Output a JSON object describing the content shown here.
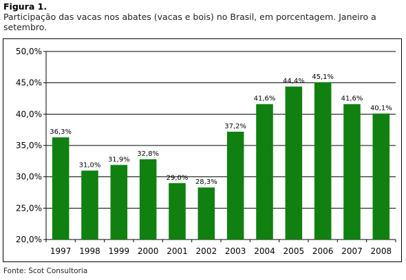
{
  "figure_label": "Figura 1.",
  "caption": "Participação das vacas nos abates (vacas e bois) no Brasil, em porcentagem. Janeiro a setembro.",
  "source": "Fonte: Scot Consultoria",
  "colors": {
    "bar": "#108010",
    "grid": "#000000",
    "frame": "#000000"
  },
  "chart_data": {
    "type": "bar",
    "title": "",
    "xlabel": "",
    "ylabel": "",
    "categories": [
      "1997",
      "1998",
      "1999",
      "2000",
      "2001",
      "2002",
      "2003",
      "2004",
      "2005",
      "2006",
      "2007",
      "2008"
    ],
    "values": [
      36.3,
      31.0,
      31.9,
      32.8,
      29.0,
      28.3,
      37.2,
      41.6,
      44.4,
      45.1,
      41.6,
      40.1
    ],
    "data_labels": [
      "36,3%",
      "31,0%",
      "31,9%",
      "32,8%",
      "29,0%",
      "28,3%",
      "37,2%",
      "41,6%",
      "44,4%",
      "45,1%",
      "41,6%",
      "40,1%"
    ],
    "ylim": [
      20,
      50
    ],
    "yticks": [
      20,
      25,
      30,
      35,
      40,
      45,
      50
    ],
    "ytick_labels": [
      "20,0%",
      "25,0%",
      "30,0%",
      "35,0%",
      "40,0%",
      "45,0%",
      "50,0%"
    ],
    "grid": true,
    "legend": "none"
  }
}
